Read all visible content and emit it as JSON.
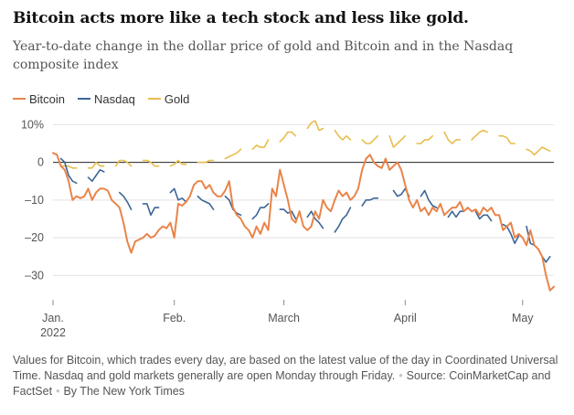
{
  "title": "Bitcoin acts more like a tech stock and less like gold.",
  "subtitle": "Year-to-date change in the dollar price of gold and Bitcoin and in the Nasdaq composite index",
  "note": {
    "text": "Values for Bitcoin, which trades every day, are based on the latest value of the day in Coordinated Universal Time. Nasdaq and gold markets generally are open Monday through Friday.",
    "source": "Source: CoinMarketCap and FactSet",
    "byline": "By The New York Times"
  },
  "colors": {
    "Bitcoin": "#e9844a",
    "Nasdaq": "#3c6597",
    "Gold": "#e8bd4c",
    "zero": "#222222",
    "grid": "#e2e2e2",
    "ticktext": "#555555"
  },
  "chart_data": {
    "type": "line",
    "xlabel": "",
    "ylabel": "",
    "ylim": [
      -36,
      13
    ],
    "yticks": [
      10,
      0,
      -10,
      -20,
      -30
    ],
    "ytick_labels": [
      "10%",
      "0",
      "–10",
      "–20",
      "–30"
    ],
    "xlim": [
      1,
      129
    ],
    "xticks": [
      {
        "day": 1,
        "label": "Jan.",
        "label2": "2022"
      },
      {
        "day": 32,
        "label": "Feb.",
        "label2": ""
      },
      {
        "day": 60,
        "label": "March",
        "label2": ""
      },
      {
        "day": 91,
        "label": "April",
        "label2": ""
      },
      {
        "day": 121,
        "label": "May",
        "label2": ""
      }
    ],
    "zero_line": true,
    "grid": "horizontal",
    "legend_position": "top-left",
    "series": [
      {
        "name": "Bitcoin",
        "x": [
          1,
          2,
          3,
          4,
          5,
          6,
          7,
          8,
          9,
          10,
          11,
          12,
          13,
          14,
          15,
          16,
          17,
          18,
          19,
          20,
          21,
          22,
          23,
          24,
          25,
          26,
          27,
          28,
          29,
          30,
          31,
          32,
          33,
          34,
          35,
          36,
          37,
          38,
          39,
          40,
          41,
          42,
          43,
          44,
          45,
          46,
          47,
          48,
          49,
          50,
          51,
          52,
          53,
          54,
          55,
          56,
          57,
          58,
          59,
          60,
          61,
          62,
          63,
          64,
          65,
          66,
          67,
          68,
          69,
          70,
          71,
          72,
          73,
          74,
          75,
          76,
          77,
          78,
          79,
          80,
          81,
          82,
          83,
          84,
          85,
          86,
          87,
          88,
          89,
          90,
          91,
          92,
          93,
          94,
          95,
          96,
          97,
          98,
          99,
          100,
          101,
          102,
          103,
          104,
          105,
          106,
          107,
          108,
          109,
          110,
          111,
          112,
          113,
          114,
          115,
          116,
          117,
          118,
          119,
          120,
          121,
          122,
          123,
          124,
          125,
          126,
          127,
          128,
          129
        ],
        "values": [
          2.5,
          2,
          -1,
          -2,
          -5,
          -10,
          -9,
          -9.5,
          -9,
          -7,
          -10,
          -8,
          -7,
          -7,
          -7.5,
          -10,
          -11,
          -12,
          -16,
          -21,
          -24,
          -21,
          -20.5,
          -20,
          -19,
          -20,
          -19.5,
          -18,
          -17,
          -17.5,
          -16,
          -20,
          -11,
          -11.5,
          -10.5,
          -9,
          -6,
          -5,
          -5,
          -7,
          -6,
          -8,
          -9,
          -9,
          -7.5,
          -5,
          -12,
          -14,
          -15,
          -17,
          -18,
          -20,
          -17,
          -19,
          -16,
          -18,
          -7,
          -9,
          -2,
          -6,
          -10,
          -15,
          -16,
          -13,
          -17,
          -18,
          -17,
          -13,
          -15,
          -10,
          -12,
          -13,
          -10,
          -7.5,
          -9,
          -8,
          -10,
          -9,
          -7,
          -2,
          1,
          2,
          0,
          -1,
          -1.5,
          1,
          -2,
          -1,
          0,
          -2,
          -6,
          -10,
          -12,
          -10,
          -13,
          -12,
          -14,
          -12,
          -13,
          -11,
          -14,
          -13,
          -12,
          -12,
          -10.5,
          -13,
          -12,
          -13,
          -12.5,
          -14,
          -12,
          -13,
          -12,
          -14,
          -14,
          -18,
          -17,
          -16,
          -20,
          -19,
          -20,
          -22,
          -18,
          -22,
          -23,
          -25,
          -30,
          -34,
          -33
        ]
      },
      {
        "name": "Nasdaq",
        "x": [
          3,
          4,
          5,
          6,
          7,
          10,
          11,
          12,
          13,
          14,
          18,
          19,
          20,
          21,
          24,
          25,
          26,
          27,
          28,
          31,
          32,
          33,
          34,
          35,
          38,
          39,
          40,
          41,
          42,
          45,
          46,
          47,
          48,
          49,
          52,
          53,
          54,
          55,
          56,
          59,
          60,
          61,
          62,
          63,
          66,
          67,
          68,
          69,
          70,
          73,
          74,
          75,
          76,
          77,
          80,
          81,
          82,
          83,
          84,
          88,
          89,
          90,
          91,
          92,
          95,
          96,
          97,
          98,
          99,
          102,
          103,
          104,
          105,
          106,
          109,
          110,
          111,
          112,
          113,
          116,
          117,
          118,
          119,
          120,
          122,
          123,
          124,
          125,
          126,
          127,
          128
        ],
        "values": [
          1,
          0,
          -3.5,
          -5,
          -5.5,
          -4,
          -5,
          -3.5,
          -2,
          -2.5,
          -8,
          -9,
          -10.5,
          -12.5,
          -11,
          -11,
          -14,
          -12,
          -12,
          -8,
          -7,
          -10,
          -9.5,
          -10.5,
          -9,
          -10,
          -10.5,
          -11,
          -12.5,
          -9,
          -10,
          -12.5,
          -13.5,
          -14,
          -15,
          -14,
          -12,
          -12,
          -11,
          -12.5,
          -12.5,
          -13.5,
          -13,
          -15,
          -14.5,
          -13,
          -15,
          -16,
          -17.5,
          -18.5,
          -17,
          -15,
          -14,
          -12,
          -11.5,
          -10,
          -10,
          -9.5,
          -9.5,
          -7.5,
          -9,
          -8.5,
          -7,
          -9,
          -9,
          -7.5,
          -10,
          -11.5,
          -12,
          -14.5,
          -13,
          -14.5,
          -13,
          -13,
          -13,
          -15,
          -14,
          -14,
          -15.5,
          -16.5,
          -17,
          -19,
          -21.5,
          -19.5,
          -17,
          -21.5,
          -22,
          -23,
          -25,
          -26.5,
          -25
        ]
      },
      {
        "name": "Gold",
        "x": [
          3,
          4,
          5,
          6,
          7,
          10,
          11,
          12,
          13,
          14,
          17,
          18,
          19,
          20,
          21,
          24,
          25,
          26,
          27,
          28,
          31,
          32,
          33,
          34,
          35,
          38,
          39,
          40,
          41,
          42,
          45,
          46,
          47,
          48,
          49,
          52,
          53,
          54,
          55,
          56,
          59,
          60,
          61,
          62,
          63,
          66,
          67,
          68,
          69,
          70,
          73,
          74,
          75,
          76,
          77,
          80,
          81,
          82,
          83,
          84,
          87,
          88,
          89,
          90,
          91,
          94,
          95,
          96,
          97,
          98,
          101,
          102,
          103,
          104,
          105,
          108,
          109,
          110,
          111,
          112,
          115,
          116,
          117,
          118,
          119,
          122,
          123,
          124,
          125,
          126,
          127,
          128
        ],
        "values": [
          -1,
          -1,
          -1,
          -1.5,
          -1.5,
          -1.5,
          -1.5,
          0,
          -1,
          -1,
          -1,
          0.5,
          0.5,
          0,
          -1,
          0.5,
          0.5,
          0,
          -1,
          -1,
          -1,
          -0.5,
          0.5,
          -0.5,
          -0.5,
          0,
          0,
          0,
          0.5,
          0.5,
          1,
          1.5,
          2,
          2.5,
          3.5,
          3.5,
          4.5,
          4,
          4,
          6,
          5.5,
          6.5,
          8,
          8,
          7,
          9,
          10.5,
          11,
          8.5,
          9,
          8.5,
          7,
          6,
          7,
          6,
          6,
          5,
          5,
          6,
          7,
          7,
          4,
          5,
          6,
          7,
          5,
          5,
          6,
          6,
          7,
          8,
          6,
          5,
          6,
          6,
          6,
          7,
          8,
          8.5,
          8,
          7,
          7,
          6.5,
          5,
          5,
          3.5,
          3,
          2,
          3,
          4,
          3.5,
          3
        ]
      }
    ]
  }
}
